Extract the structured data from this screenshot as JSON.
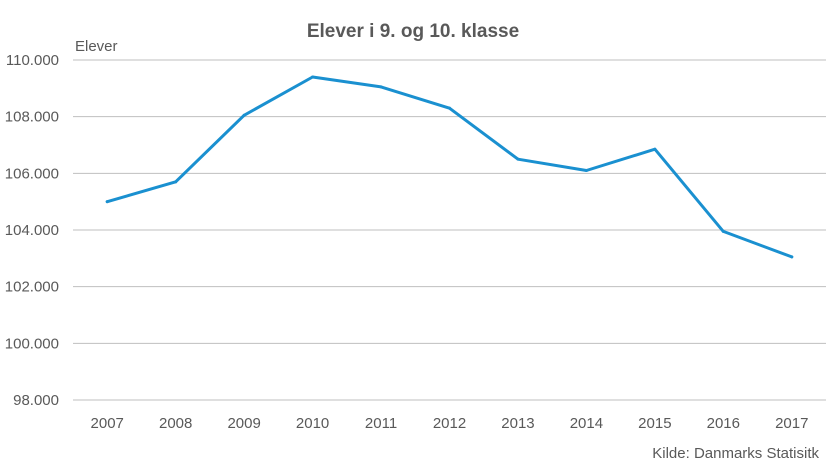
{
  "chart_data": {
    "type": "line",
    "title": "Elever i 9. og 10. klasse",
    "ylabel": "Elever",
    "xlabel": "",
    "source": "Kilde: Danmarks Statisitk",
    "categories": [
      "2007",
      "2008",
      "2009",
      "2010",
      "2011",
      "2012",
      "2013",
      "2014",
      "2015",
      "2016",
      "2017"
    ],
    "series": [
      {
        "values": [
          105000,
          105700,
          108050,
          109400,
          109050,
          108300,
          106500,
          106100,
          106850,
          103950,
          103050
        ],
        "color": "#1a90d0"
      }
    ],
    "ylim": [
      98000,
      110000
    ],
    "yticks": [
      98000,
      100000,
      102000,
      104000,
      106000,
      108000,
      110000
    ],
    "ytick_labels": [
      "98.000",
      "100.000",
      "102.000",
      "104.000",
      "106.000",
      "108.000",
      "110.000"
    ],
    "grid": true,
    "legend": "none"
  }
}
